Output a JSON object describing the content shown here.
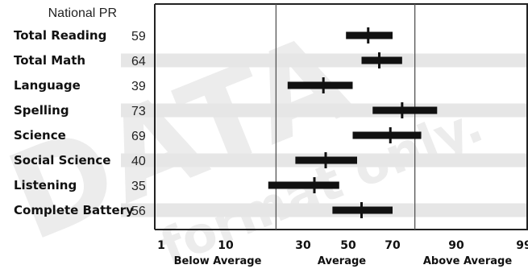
{
  "chart_data": {
    "type": "range",
    "header": "National PR",
    "categories": [
      "Total Reading",
      "Total Math",
      "Language",
      "Spelling",
      "Science",
      "Social Science",
      "Listening",
      "Complete Battery"
    ],
    "values": [
      59,
      64,
      39,
      73,
      69,
      40,
      35,
      56
    ],
    "bands": [
      [
        49,
        70
      ],
      [
        56,
        73
      ],
      [
        26,
        52
      ],
      [
        61,
        84
      ],
      [
        52,
        79
      ],
      [
        28,
        54
      ],
      [
        21,
        46
      ],
      [
        43,
        70
      ]
    ],
    "x_ticks": [
      "1",
      "10",
      "30",
      "50",
      "70",
      "90",
      "99"
    ],
    "x_tick_values": [
      1,
      10,
      30,
      50,
      70,
      90,
      99
    ],
    "x_band_labels": [
      "Below Average",
      "Average",
      "Above Average"
    ],
    "average_bounds": [
      23,
      77
    ],
    "xlim": [
      1,
      99
    ],
    "shaded_rows": [
      "Total Math",
      "Spelling",
      "Social Science",
      "Complete Battery"
    ],
    "colors": {
      "marker": "#111111",
      "row_shade": "#e6e6e6",
      "frame": "#222222",
      "divider": "#555555"
    }
  },
  "watermark": [
    "DATA",
    "format only."
  ]
}
